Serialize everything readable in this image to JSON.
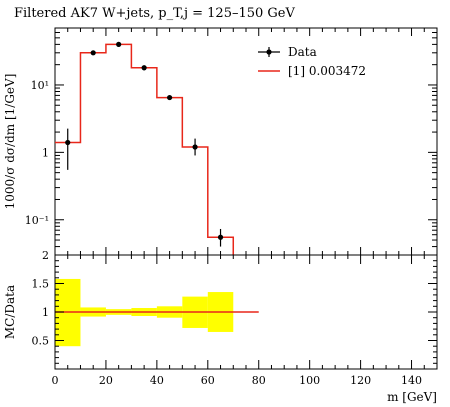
{
  "chart_data": [
    {
      "type": "line",
      "title": "Filtered AK7 W+jets, p_T,j = 125–150 GeV",
      "ylabel": "1000/σ dσ/dm [1/GeV]",
      "xlabel": "m [GeV]",
      "yscale": "log",
      "xlim": [
        0,
        150
      ],
      "ylim": [
        0.03,
        70
      ],
      "y_ticks": [
        {
          "value": 0.1,
          "label": "10⁻¹"
        },
        {
          "value": 1,
          "label": "1"
        },
        {
          "value": 10,
          "label": "10¹"
        }
      ],
      "legend_position": "top-right",
      "legend": [
        {
          "label": "Data",
          "color": "#000000",
          "marker": "point-with-errorbar"
        },
        {
          "label": "[1] 0.003472",
          "color": "#e8271a",
          "marker": "line"
        }
      ],
      "bin_edges": [
        0,
        10,
        20,
        30,
        40,
        50,
        60,
        70
      ],
      "series": [
        {
          "name": "Data",
          "x": [
            5,
            15,
            25,
            35,
            45,
            55,
            65
          ],
          "y": [
            1.4,
            30,
            40,
            18,
            6.5,
            1.2,
            0.055
          ],
          "yerr_low": [
            0.85,
            2,
            3,
            1.5,
            0.5,
            0.3,
            0.015
          ],
          "yerr_high": [
            0.85,
            2,
            3,
            1.5,
            0.5,
            0.4,
            0.018
          ]
        },
        {
          "name": "[1] 0.003472",
          "histogram": [
            1.4,
            30,
            40,
            18,
            6.5,
            1.2,
            0.055
          ],
          "color": "#e8271a"
        }
      ]
    },
    {
      "type": "area",
      "ylabel": "MC/Data",
      "xlabel": "m [GeV]",
      "xlim": [
        0,
        150
      ],
      "ylim": [
        0,
        2
      ],
      "x_ticks": [
        0,
        20,
        40,
        60,
        80,
        100,
        120,
        140
      ],
      "y_ticks": [
        0.5,
        1,
        1.5,
        2
      ],
      "ratio_line": {
        "value": 1,
        "x_range": [
          0,
          80
        ],
        "color": "#e8271a"
      },
      "band_color": "#ffff00",
      "band": {
        "bin_edges": [
          0,
          10,
          20,
          30,
          40,
          50,
          60,
          70
        ],
        "low": [
          0.4,
          0.92,
          0.95,
          0.93,
          0.9,
          0.72,
          0.65
        ],
        "high": [
          1.58,
          1.08,
          1.05,
          1.07,
          1.1,
          1.27,
          1.35
        ]
      }
    }
  ]
}
